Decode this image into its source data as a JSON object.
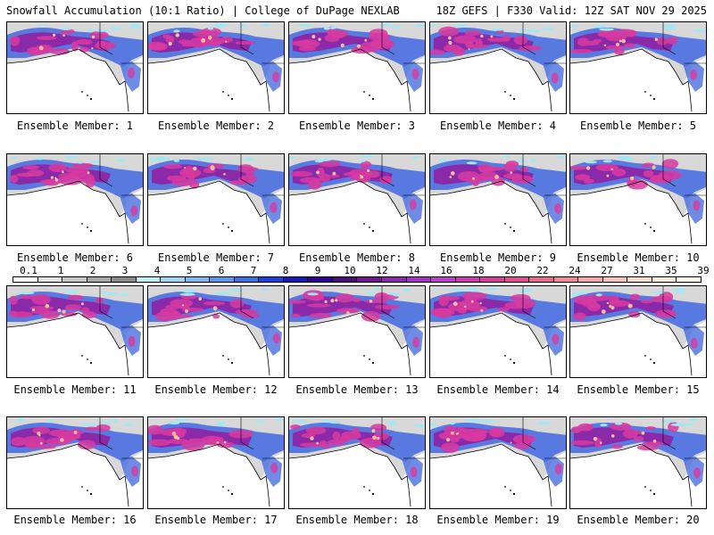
{
  "header": {
    "title_left": "Snowfall Accumulation (10:1 Ratio) | College of DuPage NEXLAB",
    "title_right": "18Z GEFS | F330 Valid: 12Z SAT NOV 29 2025"
  },
  "caption_prefix": "Ensemble Member:",
  "panels": [
    {
      "label": "Ensemble Member: 1"
    },
    {
      "label": "Ensemble Member: 2"
    },
    {
      "label": "Ensemble Member: 3"
    },
    {
      "label": "Ensemble Member: 4"
    },
    {
      "label": "Ensemble Member: 5"
    },
    {
      "label": "Ensemble Member: 6"
    },
    {
      "label": "Ensemble Member: 7"
    },
    {
      "label": "Ensemble Member: 8"
    },
    {
      "label": "Ensemble Member: 9"
    },
    {
      "label": "Ensemble Member: 10"
    },
    {
      "label": "Ensemble Member: 11"
    },
    {
      "label": "Ensemble Member: 12"
    },
    {
      "label": "Ensemble Member: 13"
    },
    {
      "label": "Ensemble Member: 14"
    },
    {
      "label": "Ensemble Member: 15"
    },
    {
      "label": "Ensemble Member: 16"
    },
    {
      "label": "Ensemble Member: 17"
    },
    {
      "label": "Ensemble Member: 18"
    },
    {
      "label": "Ensemble Member: 19"
    },
    {
      "label": "Ensemble Member: 20"
    }
  ],
  "color_scale": {
    "labels": [
      "0.1",
      "1",
      "2",
      "3",
      "4",
      "5",
      "6",
      "7",
      "8",
      "9",
      "10",
      "12",
      "14",
      "16",
      "18",
      "20",
      "22",
      "24",
      "27",
      "31",
      "35",
      "39"
    ],
    "colors": [
      "#ffffff",
      "#e2e2e2",
      "#c6c6c6",
      "#a8a8a8",
      "#8a8a8a",
      "#bfeff7",
      "#9fd8f4",
      "#80b8f0",
      "#5d96ea",
      "#3b72e2",
      "#2040d8",
      "#1a1ab8",
      "#300090",
      "#4a1070",
      "#6a1a8a",
      "#8a2aa8",
      "#a036c0",
      "#b840c8",
      "#cc3cb0",
      "#d84098",
      "#e05090",
      "#e86890",
      "#f08898",
      "#f4a8a8",
      "#f6c4b8",
      "#f8dcc8",
      "#faecd8",
      "#fcf4e8"
    ]
  },
  "map_colors": {
    "ocean": "#ffffff",
    "land_light": "#d8d8d8",
    "snow_blue": "#4a6fe0",
    "snow_purple": "#8a2aa8",
    "snow_magenta": "#d83aa0",
    "snow_peak": "#f4c0a0",
    "cyan": "#9fe8f4"
  }
}
